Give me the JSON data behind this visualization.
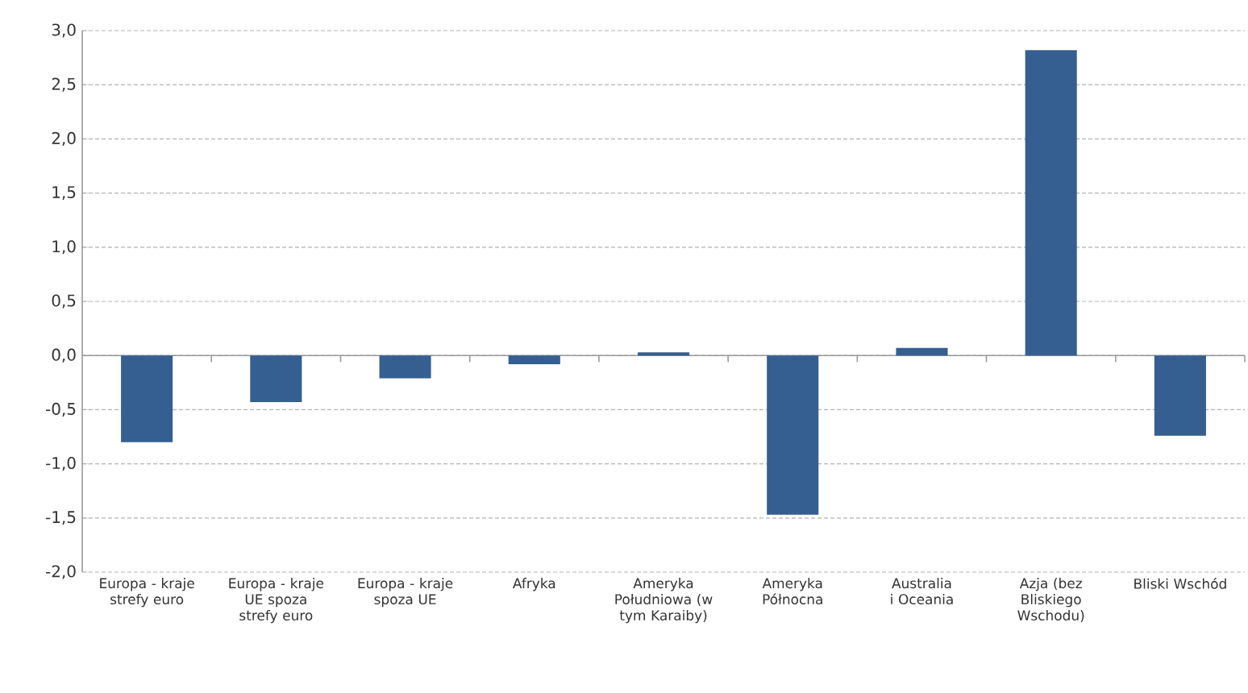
{
  "chart_data": {
    "type": "bar",
    "categories": [
      "Europa - kraje strefy euro",
      "Europa - kraje UE spoza strefy euro",
      "Europa - kraje spoza UE",
      "Afryka",
      "Ameryka Południowa (w tym Karaiby)",
      "Ameryka Północna",
      "Australia i Oceania",
      "Azja (bez Bliskiego Wschodu)",
      "Bliski Wschód"
    ],
    "values": [
      -0.8,
      -0.43,
      -0.21,
      -0.08,
      0.03,
      -1.47,
      0.07,
      2.82,
      -0.74
    ],
    "color": "#355f91",
    "ylim": [
      -2,
      3
    ],
    "yticks": [
      {
        "value": -2,
        "label": "-2,0"
      },
      {
        "value": -1.5,
        "label": "-1,5"
      },
      {
        "value": -1,
        "label": "-1,0"
      },
      {
        "value": -0.5,
        "label": "-0,5"
      },
      {
        "value": 0,
        "label": "0,0"
      },
      {
        "value": 0.5,
        "label": "0,5"
      },
      {
        "value": 1,
        "label": "1,0"
      },
      {
        "value": 1.5,
        "label": "1,5"
      },
      {
        "value": 2,
        "label": "2,0"
      },
      {
        "value": 2.5,
        "label": "2,5"
      },
      {
        "value": 3,
        "label": "3,0"
      }
    ],
    "grid": "y"
  }
}
